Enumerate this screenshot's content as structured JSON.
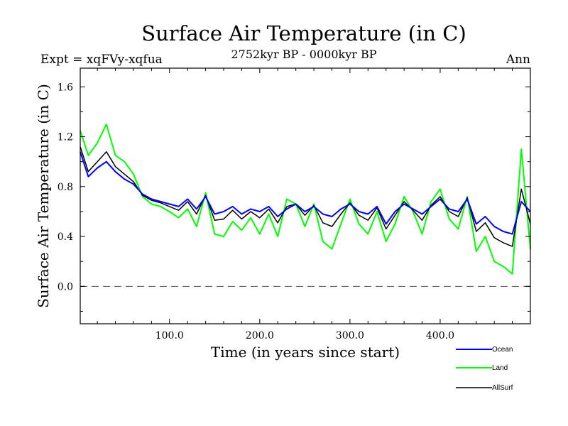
{
  "chart_data": {
    "type": "line",
    "title": "Surface Air Temperature (in C)",
    "subtitle": "2752kyr BP - 0000kyr BP",
    "expt_label": "Expt = xqFVy-xqfua",
    "period_label": "Ann",
    "xlabel": "Time (in years since start)",
    "ylabel": "Surface Air Temperature (in C)",
    "xlim": [
      1,
      500
    ],
    "ylim": [
      -0.3,
      1.75
    ],
    "x_ticks": [
      100,
      200,
      300,
      400
    ],
    "x_tick_labels": [
      "100.0",
      "200.0",
      "300.0",
      "400.0"
    ],
    "y_ticks": [
      0.0,
      0.4,
      0.8,
      1.2,
      1.6
    ],
    "y_tick_labels": [
      "0.0",
      "0.4",
      "0.8",
      "1.2",
      "1.6"
    ],
    "reference_line": 0.0,
    "x": [
      1,
      10,
      20,
      30,
      40,
      50,
      60,
      70,
      80,
      90,
      100,
      110,
      120,
      130,
      140,
      150,
      160,
      170,
      180,
      190,
      200,
      210,
      220,
      230,
      240,
      250,
      260,
      270,
      280,
      290,
      300,
      310,
      320,
      330,
      340,
      350,
      360,
      370,
      380,
      390,
      400,
      410,
      420,
      430,
      440,
      450,
      460,
      470,
      480,
      490,
      500
    ],
    "series": [
      {
        "name": "Ocean",
        "color": "#0000ff",
        "values": [
          1.08,
          0.88,
          0.95,
          1.0,
          0.92,
          0.86,
          0.82,
          0.74,
          0.7,
          0.68,
          0.66,
          0.64,
          0.7,
          0.62,
          0.72,
          0.58,
          0.6,
          0.64,
          0.58,
          0.62,
          0.6,
          0.64,
          0.56,
          0.62,
          0.66,
          0.6,
          0.64,
          0.58,
          0.56,
          0.62,
          0.66,
          0.6,
          0.58,
          0.64,
          0.5,
          0.6,
          0.66,
          0.62,
          0.58,
          0.64,
          0.7,
          0.62,
          0.6,
          0.7,
          0.5,
          0.56,
          0.48,
          0.44,
          0.42,
          0.68,
          0.6
        ]
      },
      {
        "name": "Land",
        "color": "#00ff00",
        "values": [
          1.25,
          1.05,
          1.15,
          1.3,
          1.05,
          1.0,
          0.9,
          0.72,
          0.66,
          0.64,
          0.6,
          0.55,
          0.62,
          0.48,
          0.75,
          0.42,
          0.4,
          0.52,
          0.45,
          0.55,
          0.42,
          0.58,
          0.4,
          0.7,
          0.66,
          0.48,
          0.66,
          0.36,
          0.3,
          0.5,
          0.7,
          0.5,
          0.42,
          0.6,
          0.36,
          0.5,
          0.72,
          0.6,
          0.42,
          0.68,
          0.78,
          0.54,
          0.46,
          0.72,
          0.28,
          0.4,
          0.2,
          0.16,
          0.1,
          1.1,
          0.3
        ]
      },
      {
        "name": "AllSurf",
        "color": "#000000",
        "values": [
          1.12,
          0.92,
          1.0,
          1.08,
          0.96,
          0.9,
          0.84,
          0.73,
          0.69,
          0.67,
          0.64,
          0.61,
          0.68,
          0.58,
          0.73,
          0.53,
          0.54,
          0.61,
          0.54,
          0.6,
          0.55,
          0.62,
          0.51,
          0.64,
          0.66,
          0.57,
          0.65,
          0.51,
          0.48,
          0.58,
          0.67,
          0.57,
          0.53,
          0.63,
          0.46,
          0.57,
          0.68,
          0.61,
          0.53,
          0.65,
          0.72,
          0.6,
          0.56,
          0.71,
          0.44,
          0.51,
          0.39,
          0.35,
          0.32,
          0.78,
          0.5
        ]
      }
    ]
  }
}
